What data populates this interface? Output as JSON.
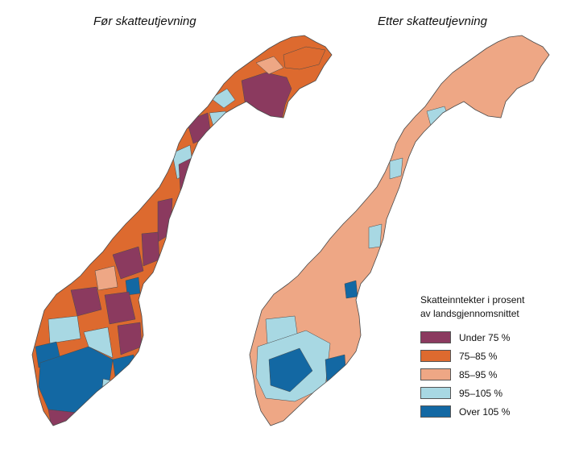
{
  "maps": {
    "before": {
      "title": "Før skatteutjevning"
    },
    "after": {
      "title": "Etter skatteutjevning"
    }
  },
  "legend": {
    "title_line1": "Skatteinntekter i prosent",
    "title_line2": "av landsgjennomsnittet",
    "items": [
      {
        "label": "Under 75 %",
        "color": "#8b3a5f"
      },
      {
        "label": "75–85 %",
        "color": "#dd6a2f"
      },
      {
        "label": "85–95 %",
        "color": "#eea785"
      },
      {
        "label": "95–105 %",
        "color": "#a8d8e3"
      },
      {
        "label": "Over 105 %",
        "color": "#1368a3"
      }
    ]
  },
  "colors": {
    "under75": "#8b3a5f",
    "c75_85": "#dd6a2f",
    "c85_95": "#eea785",
    "c95_105": "#a8d8e3",
    "over105": "#1368a3",
    "border": "#4a4a4a"
  }
}
